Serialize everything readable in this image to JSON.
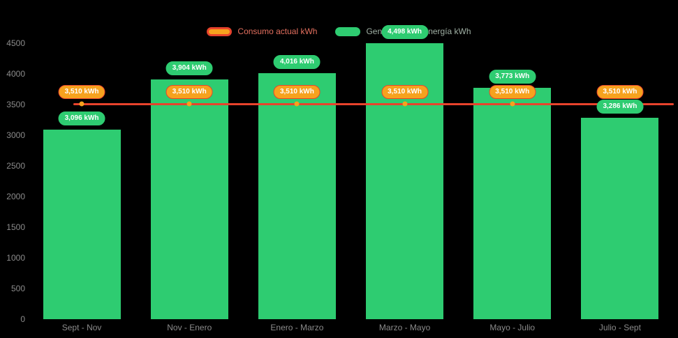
{
  "background": "#000000",
  "legend": {
    "text_colors": [
      "#e4705f",
      "#a0b0a4"
    ]
  },
  "axis": {
    "tick_color": "#8b8b8b"
  },
  "chart_data": {
    "type": "bar",
    "title": "",
    "categories": [
      "Sept - Nov",
      "Nov - Enero",
      "Enero - Marzo",
      "Marzo - Mayo",
      "Mayo - Julio",
      "Julio - Sept"
    ],
    "series": [
      {
        "name": "Generación de energía kWh",
        "type": "bar",
        "color": "#2ecc71",
        "label_border_color": "#2ecc71",
        "values": [
          3096,
          3904,
          4016,
          4498,
          3773,
          3286
        ],
        "value_labels": [
          "3,096 kWh",
          "3,904 kWh",
          "4,016 kWh",
          "4,498 kWh",
          "3,773 kWh",
          "3,286 kWh"
        ]
      },
      {
        "name": "Consumo actual kWh",
        "type": "line",
        "color": "#e8432c",
        "marker_color": "#f6a21e",
        "values": [
          3510,
          3510,
          3510,
          3510,
          3510,
          3510
        ],
        "value_labels": [
          "3,510 kWh",
          "3,510 kWh",
          "3,510 kWh",
          "3,510 kWh",
          "3,510 kWh",
          "3,510 kWh"
        ]
      }
    ],
    "ylim": [
      0,
      4500
    ],
    "yticks": [
      0,
      500,
      1000,
      1500,
      2000,
      2500,
      3000,
      3500,
      4000,
      4500
    ],
    "xlabel": "",
    "ylabel": "",
    "grid": false,
    "legend_position": "top"
  }
}
